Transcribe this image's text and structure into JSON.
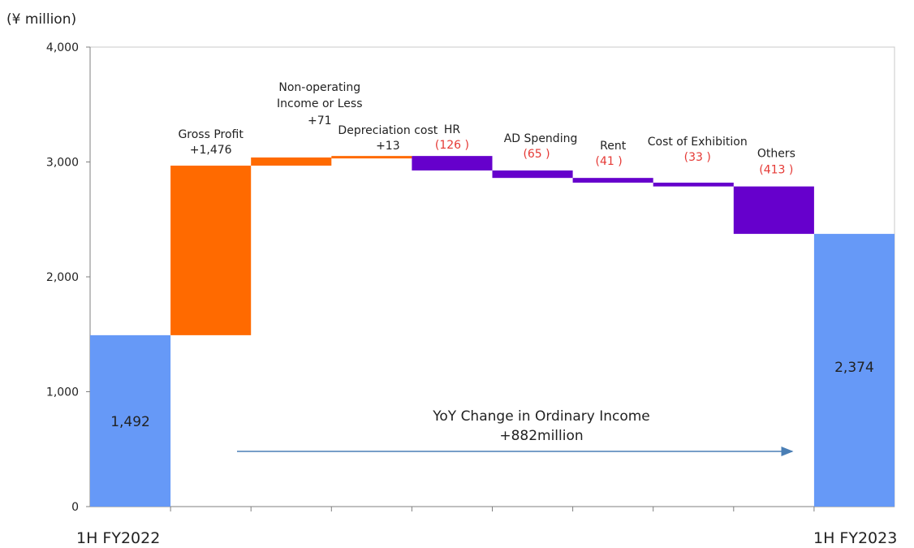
{
  "chart_data": {
    "type": "bar",
    "subtype": "waterfall",
    "unit_label": "(¥ million)",
    "ylim": [
      0,
      4000
    ],
    "yticks": [
      "0",
      "1,000",
      "2,000",
      "3,000",
      "4,000"
    ],
    "ytick_values": [
      0,
      1000,
      2000,
      3000,
      4000
    ],
    "grid": false,
    "steps": [
      {
        "label": "1H FY2022",
        "value": 1492,
        "kind": "total",
        "value_text": "1,492"
      },
      {
        "label": "Gross Profit",
        "value": 1476,
        "kind": "increase",
        "value_text": "+1,476"
      },
      {
        "label": "Non-operating Income or Less",
        "label_lines": [
          "Non-operating",
          "Income or Less"
        ],
        "value": 71,
        "kind": "increase",
        "value_text": "+71"
      },
      {
        "label": "Depreciation cost",
        "value": 13,
        "kind": "increase",
        "value_text": "+13"
      },
      {
        "label": "HR",
        "value": -126,
        "kind": "decrease",
        "value_text": "(126 )"
      },
      {
        "label": "AD Spending",
        "value": -65,
        "kind": "decrease",
        "value_text": "(65 )"
      },
      {
        "label": "Rent",
        "value": -41,
        "kind": "decrease",
        "value_text": "(41 )"
      },
      {
        "label": "Cost of Exhibition",
        "value": -33,
        "kind": "decrease",
        "value_text": "(33 )"
      },
      {
        "label": "Others",
        "value": -413,
        "kind": "decrease",
        "value_text": "(413 )"
      },
      {
        "label": "1H FY2023",
        "value": 2374,
        "kind": "total",
        "value_text": "2,374"
      }
    ],
    "annotation": {
      "line1": "YoY Change in Ordinary Income",
      "line2": "+882million"
    },
    "colors": {
      "total": "#6699f7",
      "increase": "#ff6a00",
      "decrease": "#6600cc",
      "negative_text": "#e53935",
      "arrow": "#4a7eb5"
    }
  }
}
